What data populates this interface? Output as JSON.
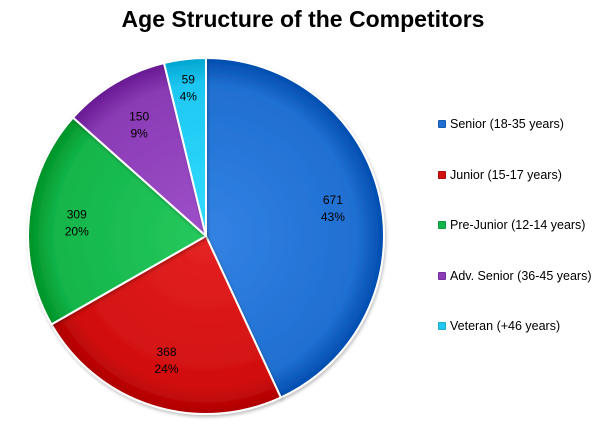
{
  "chart_data": {
    "type": "pie",
    "title": "Age Structure of the Competitors",
    "legend_position": "right",
    "slices": [
      {
        "label": "Senior (18-35 years)",
        "value": 671,
        "percent": "43%",
        "color": "#1f6fd1"
      },
      {
        "label": "Junior (15-17 years)",
        "value": 368,
        "percent": "24%",
        "color": "#d10f0f"
      },
      {
        "label": "Pre-Junior (12-14 years)",
        "value": 309,
        "percent": "20%",
        "color": "#12b54a"
      },
      {
        "label": "Adv. Senior (36-45 years)",
        "value": 150,
        "percent": "9%",
        "color": "#8a3bb5"
      },
      {
        "label": "Veteran (+46 years)",
        "value": 59,
        "percent": "4%",
        "color": "#1ec8f2"
      }
    ]
  }
}
